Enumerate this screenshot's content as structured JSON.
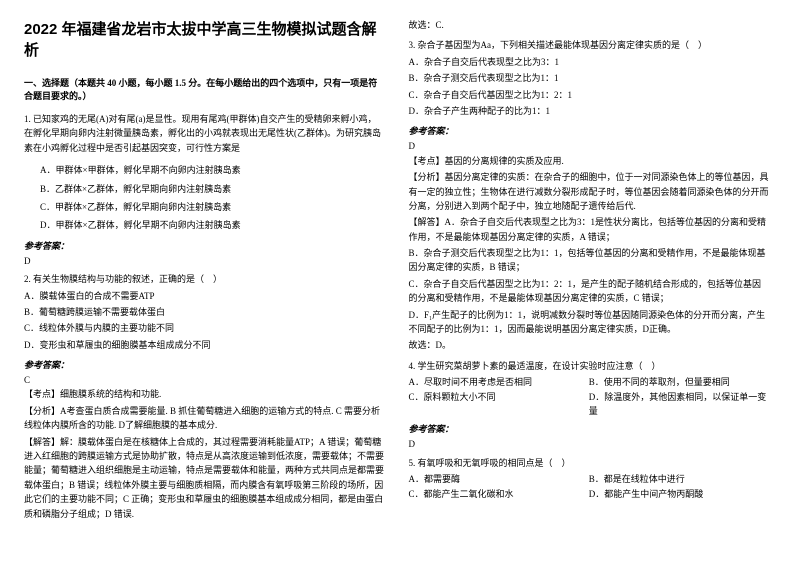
{
  "title": "2022 年福建省龙岩市太拔中学高三生物模拟试题含解析",
  "section1": "一、选择题（本题共 40 小题，每小题 1.5 分。在每小题给出的四个选项中，只有一项是符合题目要求的。）",
  "q1": {
    "stem": "1. 已知家鸡的无尾(A)对有尾(a)是显性。现用有尾鸡(甲群体)自交产生的受精卵来孵小鸡，在孵化早期向卵内注射微量胰岛素，孵化出的小鸡就表现出无尾性状(乙群体)。为研究胰岛素在小鸡孵化过程中是否引起基因突变，可行性方案是",
    "a": "A．甲群体×甲群体，孵化早期不向卵内注射胰岛素",
    "b": "B．乙群体×乙群体，孵化早期向卵内注射胰岛素",
    "c": "C．甲群体×乙群体，孵化早期向卵内注射胰岛素",
    "d": "D．甲群体×乙群体，孵化早期不向卵内注射胰岛素",
    "ansLabel": "参考答案：",
    "ans": "D"
  },
  "q2": {
    "stem": "2. 有关生物膜结构与功能的叙述，正确的是（　）",
    "a": "A．膜载体蛋白的合成不需要ATP",
    "b": "B．葡萄糖跨膜运输不需要载体蛋白",
    "c": "C．线粒体外膜与内膜的主要功能不同",
    "d": "D．变形虫和草履虫的细胞膜基本组成成分不同",
    "ansLabel": "参考答案：",
    "ans": "C",
    "point": "【考点】细胞膜系统的结构和功能.",
    "analysis1": "【分析】A考查蛋白质合成需要能量. B 抓住葡萄糖进入细胞的运输方式的特点. C 需要分析线粒体内膜所含的功能. D了解细胞膜的基本成分.",
    "analysis2": "【解答】解：膜载体蛋白是在核糖体上合成的，其过程需要消耗能量ATP；A 错误；葡萄糖进入红细胞的跨膜运输方式是协助扩散，特点是从高浓度运输到低浓度，需要载体；不需要能量；葡萄糖进入组织细胞是主动运输，特点是需要载体和能量，两种方式共同点是都需要载体蛋白；B 错误；线粒体外膜主要与细胞质相隔，而内膜含有氧呼吸第三阶段的场所，因此它们的主要功能不同；C 正确；变形虫和草履虫的细胞膜基本组成成分相同，都是由蛋白质和磷脂分子组成；D 错误."
  },
  "right_top": "故选：C.",
  "q3": {
    "stem": "3. 杂合子基因型为Aa，下列相关描述最能体现基因分离定律实质的是（　）",
    "a": "A．杂合子自交后代表现型之比为3：1",
    "b": "B．杂合子测交后代表现型之比为1：1",
    "c": "C．杂合子自交后代基因型之比为1：2：1",
    "d": "D．杂合子产生两种配子的比为1：1",
    "ansLabel": "参考答案：",
    "ans": "D",
    "point": "【考点】基因的分离规律的实质及应用.",
    "analysis1": "【分析】基因分离定律的实质：在杂合子的细胞中，位于一对同源染色体上的等位基因，具有一定的独立性；生物体在进行减数分裂形成配子时，等位基因会随着同源染色体的分开而分离，分别进入到两个配子中，独立地随配子遗传给后代.",
    "analysis2": "【解答】A．杂合子自交后代表现型之比为3：1是性状分离比，包括等位基因的分离和受精作用，不是最能体现基因分离定律的实质，A 错误；",
    "analysis3": "B．杂合子测交后代表现型之比为1：1，包括等位基因的分离和受精作用，不是最能体现基因分离定律的实质，B 错误；",
    "analysis4": "C．杂合子自交后代基因型之比为1：2：1，是产生的配子随机结合形成的，包括等位基因的分离和受精作用，不是最能体现基因分离定律的实质，C 错误；",
    "analysis5": "D．F₁产生配子的比例为1：1，说明减数分裂时等位基因随同源染色体的分开而分离，产生不同配子的比例为1：1，因而最能说明基因分离定律实质，D正确。",
    "conclusion": "故选：D。"
  },
  "q4": {
    "stem": "4. 学生研究菜胡萝卜素的最适温度，在设计实验时应注意（　）",
    "a": "A．尽取时间不用考虑是否相同",
    "b": "B．使用不同的萃取剂，但量要相同",
    "c": "C．原料颗粒大小不同",
    "d": "D．除温度外，其他因素相同，以保证单一变量",
    "ansLabel": "参考答案：",
    "ans": "D"
  },
  "q5": {
    "stem": "5. 有氧呼吸和无氧呼吸的相同点是（　）",
    "a": "A．都需要酶",
    "b": "B．都是在线粒体中进行",
    "c": "C．都能产生二氧化碳和水",
    "d": "D．都能产生中间产物丙酮酸"
  }
}
